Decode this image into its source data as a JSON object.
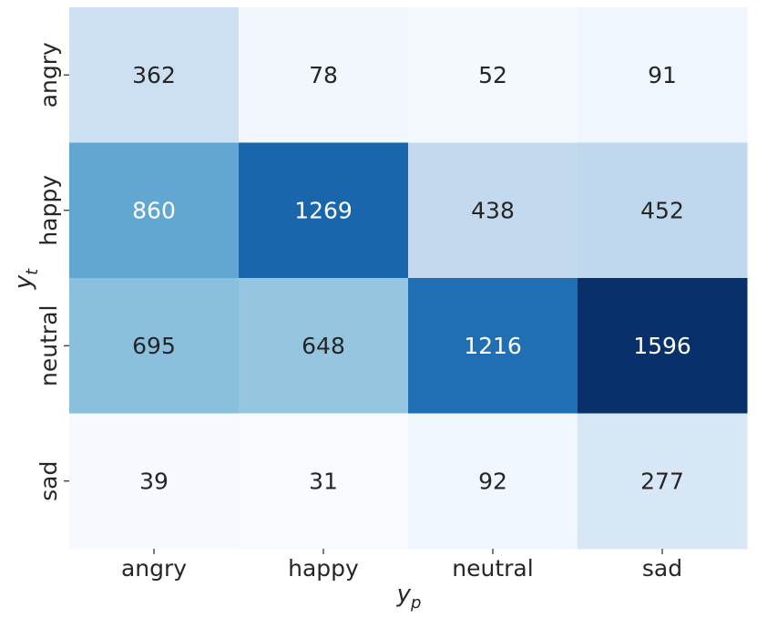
{
  "chart_data": {
    "type": "heatmap",
    "title": "",
    "xlabel": "y",
    "xlabel_sub": "p",
    "ylabel": "y",
    "ylabel_sub": "t",
    "x_categories": [
      "angry",
      "happy",
      "neutral",
      "sad"
    ],
    "y_categories": [
      "angry",
      "happy",
      "neutral",
      "sad"
    ],
    "values": [
      [
        362,
        78,
        52,
        91
      ],
      [
        860,
        1269,
        438,
        452
      ],
      [
        695,
        648,
        1216,
        1596
      ],
      [
        39,
        31,
        92,
        277
      ]
    ],
    "value_range": [
      31,
      1596
    ],
    "colormap": "Blues",
    "annotations": true,
    "colors": {
      "text_light": "#ffffff",
      "text_dark": "#262626"
    }
  }
}
